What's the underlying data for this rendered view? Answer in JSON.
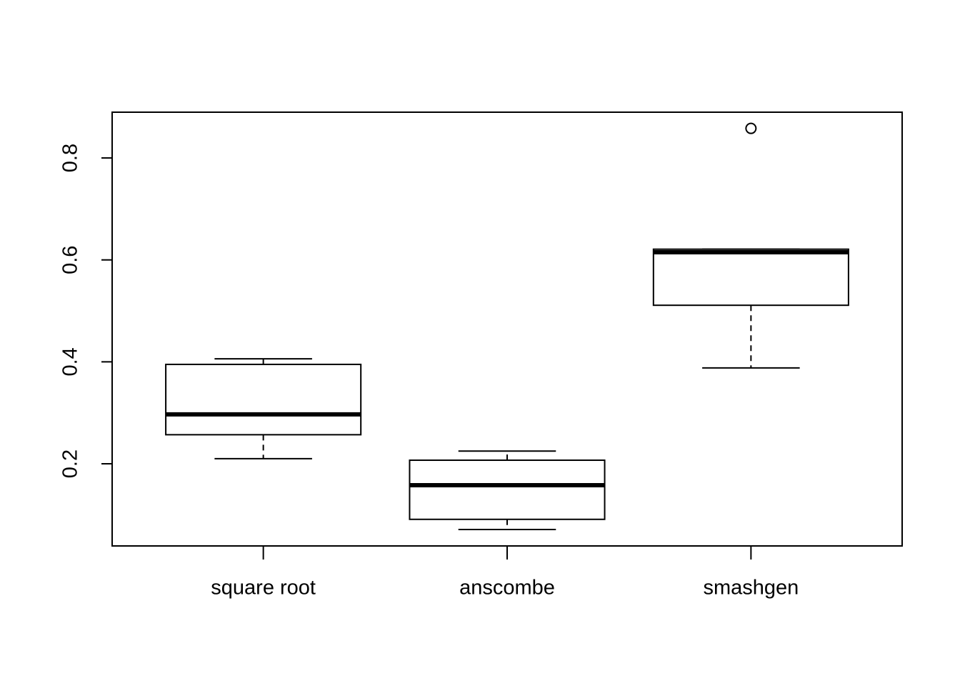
{
  "chart_data": {
    "type": "box",
    "categories": [
      "square root",
      "anscombe",
      "smashgen"
    ],
    "stats": [
      {
        "min": 0.21,
        "q1": 0.257,
        "median": 0.297,
        "q3": 0.395,
        "max": 0.406,
        "outliers": []
      },
      {
        "min": 0.071,
        "q1": 0.091,
        "median": 0.158,
        "q3": 0.207,
        "max": 0.225,
        "outliers": []
      },
      {
        "min": 0.388,
        "q1": 0.511,
        "median": 0.615,
        "q3": 0.621,
        "max": 0.621,
        "outliers": [
          0.858
        ]
      }
    ],
    "color": "#000000",
    "ylim": [
      0.0388,
      0.8898
    ],
    "yticks": [
      0.2,
      0.4,
      0.6,
      0.8
    ],
    "grid": false
  }
}
